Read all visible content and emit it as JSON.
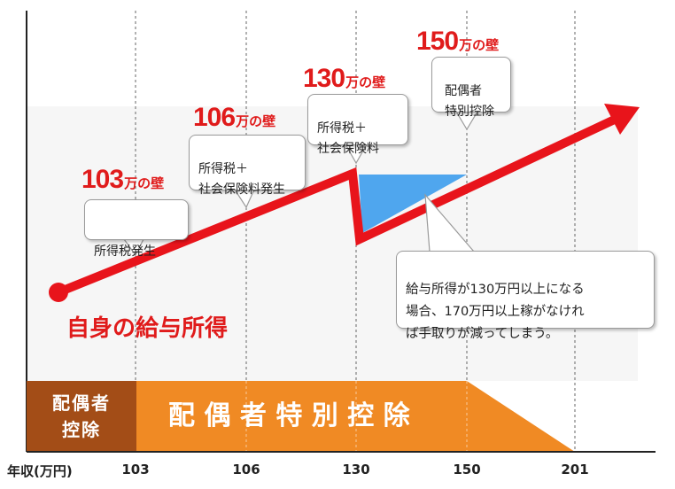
{
  "walls": [
    {
      "id": "103",
      "number": "103",
      "unit": "万の壁",
      "callout": "所得税発生"
    },
    {
      "id": "106",
      "number": "106",
      "unit": "万の壁",
      "callout": "所得税＋\n社会保険料発生"
    },
    {
      "id": "130",
      "number": "130",
      "unit": "万の壁",
      "callout": "所得税＋\n社会保険料"
    },
    {
      "id": "150",
      "number": "150",
      "unit": "万の壁",
      "callout": "配偶者\n特別控除"
    }
  ],
  "note": "給与所得が130万円以上になる\n場合、170万円以上稼がなけれ\nば手取りが減ってしまう。",
  "income_label": "自身の給与所得",
  "deductions": {
    "spouse_deduction": "配偶者\n控除",
    "spouse_special_deduction": "配 偶 者 特 別 控 除"
  },
  "axis": {
    "label": "年収(万円)",
    "ticks": [
      "103",
      "106",
      "130",
      "150",
      "201"
    ]
  },
  "colors": {
    "red": "#e8141b",
    "orange": "#f08a24",
    "brown": "#a34d17",
    "blue": "#4fa6ee",
    "gray_band": "#f0f0f0",
    "text_red": "#e01b1b"
  }
}
